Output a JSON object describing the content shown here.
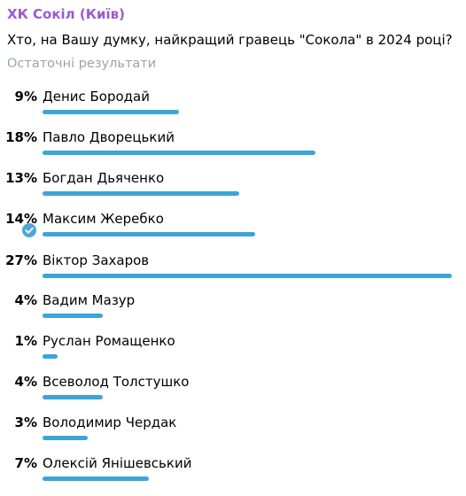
{
  "poll": {
    "channel": "ХК Сокіл (Київ)",
    "question": "Хто, на Вашу думку, найкращий гравець \"Сокола\" в 2024 році?",
    "status": "Остаточні результати",
    "accent_color": "#3ba4d8",
    "channel_color": "#9b59d0",
    "options": [
      {
        "percent_label": "9%",
        "percent": 9,
        "name": "Денис Бородай",
        "voted": false
      },
      {
        "percent_label": "18%",
        "percent": 18,
        "name": "Павло Дворецький",
        "voted": false
      },
      {
        "percent_label": "13%",
        "percent": 13,
        "name": "Богдан Дьяченко",
        "voted": false
      },
      {
        "percent_label": "14%",
        "percent": 14,
        "name": "Максим Жеребко",
        "voted": true,
        "voted_icon": "check-circle-icon"
      },
      {
        "percent_label": "27%",
        "percent": 27,
        "name": "Віктор Захаров",
        "voted": false
      },
      {
        "percent_label": "4%",
        "percent": 4,
        "name": "Вадим Мазур",
        "voted": false
      },
      {
        "percent_label": "1%",
        "percent": 1,
        "name": "Руслан Ромащенко",
        "voted": false
      },
      {
        "percent_label": "4%",
        "percent": 4,
        "name": "Всеволод Толстушко",
        "voted": false
      },
      {
        "percent_label": "3%",
        "percent": 3,
        "name": "Володимир Чердак",
        "voted": false
      },
      {
        "percent_label": "7%",
        "percent": 7,
        "name": "Олексій Янішевський",
        "voted": false
      }
    ]
  }
}
